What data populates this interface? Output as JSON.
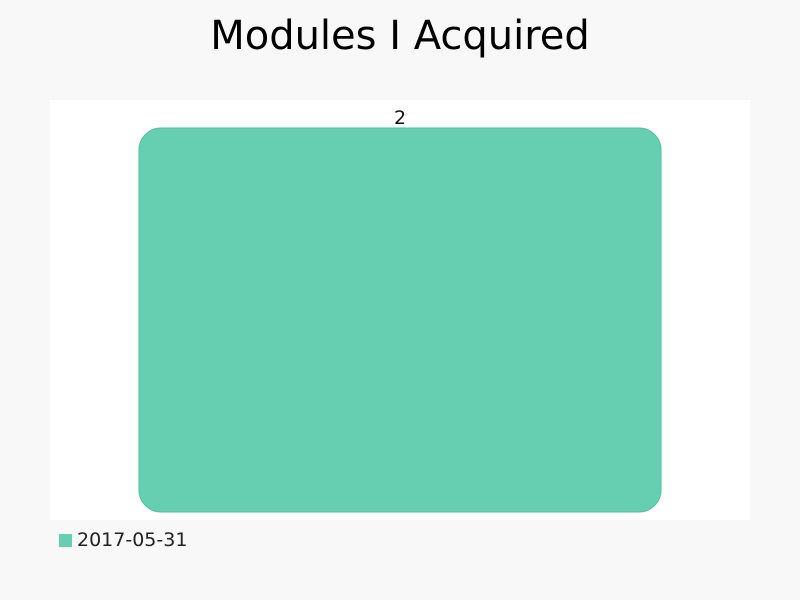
{
  "chart_data": {
    "type": "bar",
    "title": "Modules I Acquired",
    "categories": [
      "2017-05-31"
    ],
    "series": [
      {
        "name": "2017-05-31",
        "values": [
          2
        ],
        "color": "#67cfb1"
      }
    ],
    "ylim": [
      0,
      2
    ],
    "grid": false,
    "axes_visible": false,
    "data_labels": true,
    "legend_position": "bottom-left",
    "colors": {
      "page_background": "#f8f8f8",
      "plot_background": "#ffffff",
      "bar_fill": "#67cfb1",
      "bar_stroke": "#4fc29f"
    }
  }
}
